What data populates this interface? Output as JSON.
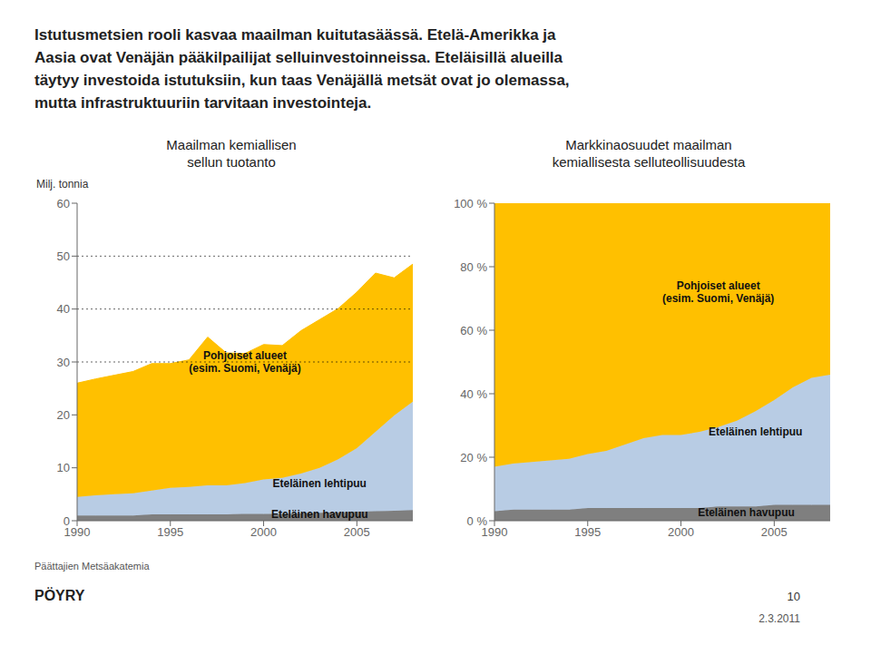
{
  "title": "Istutusmetsien rooli kasvaa maailman kuitutasäässä. Etelä-Amerikka ja\nAasia ovat Venäjän pääkilpailijat selluinvestoinneissa. Eteläisillä alueilla\ntäytyy investoida istutuksiin, kun taas Venäjällä metsät ovat jo olemassa,\nmutta infrastruktuuriin tarvitaan investointeja.",
  "annotations": [
    {
      "text": "PÖYRY"
    },
    {
      "text": "Päättajien Metsäakatemia"
    },
    {
      "text": "10"
    },
    {
      "text": "2.3.2011"
    }
  ],
  "chart_data": [
    {
      "type": "area",
      "stacked": true,
      "title": "Maailman kemiallisen\nsellun tuotanto",
      "y_label": "Milj. tonnia",
      "x": [
        1990,
        1991,
        1992,
        1993,
        1994,
        1995,
        1996,
        1997,
        1998,
        1999,
        2000,
        2001,
        2002,
        2003,
        2004,
        2005,
        2006,
        2007,
        2008
      ],
      "series": [
        {
          "name": "Eteläinen havupuu",
          "color": "#7f7f7f",
          "values": [
            1.0,
            1.0,
            1.0,
            1.0,
            1.2,
            1.2,
            1.2,
            1.2,
            1.2,
            1.3,
            1.3,
            1.3,
            1.4,
            1.5,
            1.6,
            1.7,
            1.8,
            1.9,
            2.0
          ],
          "label_at": [
            2003,
            1.2
          ]
        },
        {
          "name": "Eteläinen lehtipuu",
          "color": "#b8cce4",
          "values": [
            3.5,
            3.8,
            4.0,
            4.2,
            4.5,
            5.0,
            5.2,
            5.5,
            5.5,
            5.8,
            6.5,
            6.8,
            7.5,
            8.5,
            10.0,
            12.0,
            15.0,
            18.0,
            20.5
          ],
          "label_at": [
            2003,
            7
          ]
        },
        {
          "name": "Pohjoiset alueet\n(esim. Suomi, Venäjä)",
          "color": "#ffc000",
          "values": [
            21.5,
            22.0,
            22.5,
            23.0,
            24.0,
            23.5,
            24.0,
            28.0,
            25.0,
            24.5,
            25.5,
            25.0,
            27.0,
            28.0,
            28.5,
            29.5,
            30.0,
            26.0,
            26.0
          ],
          "label_at": [
            1999,
            30
          ]
        }
      ],
      "xlim": [
        1990,
        2008
      ],
      "xticks": [
        1990,
        1995,
        2000,
        2005
      ],
      "ylim": [
        0,
        60
      ],
      "yticks": [
        0,
        10,
        20,
        30,
        40,
        50,
        60
      ],
      "dotted_lines": [
        30,
        40,
        50
      ]
    },
    {
      "type": "area",
      "stacked": true,
      "title": "Markkinaosuudet maailman\nkemiallisesta selluteollisuudesta",
      "x": [
        1990,
        1991,
        1992,
        1993,
        1994,
        1995,
        1996,
        1997,
        1998,
        1999,
        2000,
        2001,
        2002,
        2003,
        2004,
        2005,
        2006,
        2007,
        2008
      ],
      "series": [
        {
          "name": "Eteläinen havupuu",
          "color": "#7f7f7f",
          "values": [
            3.0,
            3.5,
            3.5,
            3.5,
            3.5,
            4.0,
            4.0,
            4.0,
            4.0,
            4.0,
            4.0,
            4.0,
            4.5,
            4.5,
            4.5,
            5.0,
            5.0,
            5.0,
            5.0
          ],
          "label_at": [
            2003.5,
            2.5
          ]
        },
        {
          "name": "Eteläinen lehtipuu",
          "color": "#b8cce4",
          "values": [
            14.0,
            14.5,
            15.0,
            15.5,
            16.0,
            17.0,
            18.0,
            20.0,
            22.0,
            23.0,
            23.0,
            24.0,
            25.0,
            27.0,
            30.0,
            33.0,
            37.0,
            40.0,
            41.0
          ],
          "label_at": [
            2004,
            28
          ]
        },
        {
          "name": "Pohjoiset alueet\n(esim. Suomi, Venäjä)",
          "color": "#ffc000",
          "values": [
            83.0,
            82.0,
            81.5,
            81.0,
            80.5,
            79.0,
            78.0,
            76.0,
            74.0,
            73.0,
            73.0,
            72.0,
            70.5,
            68.5,
            65.5,
            62.0,
            58.0,
            55.0,
            54.0
          ],
          "label_at": [
            2002,
            72
          ]
        }
      ],
      "xlim": [
        1990,
        2008
      ],
      "xticks": [
        1990,
        1995,
        2000,
        2005
      ],
      "ylim": [
        0,
        100
      ],
      "yticks": [
        {
          "value": 0,
          "label": "0 %"
        },
        {
          "value": 20,
          "label": "20 %"
        },
        {
          "value": 40,
          "label": "40 %"
        },
        {
          "value": 60,
          "label": "60 %"
        },
        {
          "value": 80,
          "label": "80 %"
        },
        {
          "value": 100,
          "label": "100 %"
        }
      ]
    }
  ]
}
